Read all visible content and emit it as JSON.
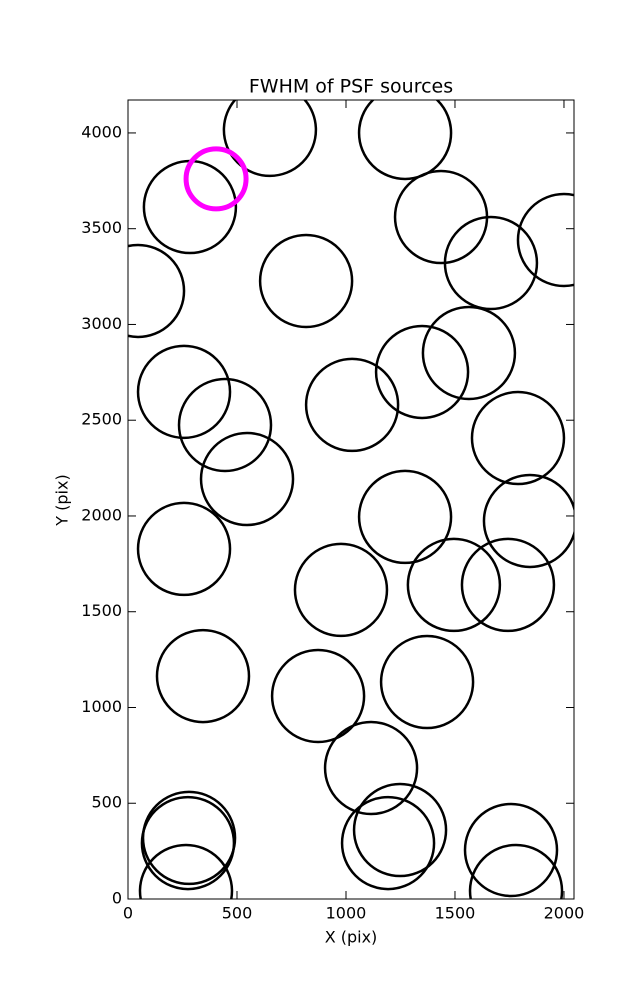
{
  "chart_data": {
    "type": "scatter",
    "title": "FWHM of PSF sources",
    "x_label": "X (pix)",
    "y_label": "Y (pix)",
    "xlim": [
      0,
      2046
    ],
    "ylim": [
      0,
      4172
    ],
    "xticks": [
      0,
      500,
      1000,
      1500,
      2000
    ],
    "yticks": [
      0,
      500,
      1000,
      1500,
      2000,
      2500,
      3000,
      3500,
      4000
    ],
    "series": [
      {
        "color": "#000000",
        "x": [
          651,
          1271,
          284,
          1436,
          2000,
          1665,
          46,
          817,
          1564,
          1349,
          257,
          1028,
          445,
          1789,
          546,
          1271,
          1844,
          257,
          1495,
          1743,
          977,
          344,
          872,
          1372,
          1115,
          280,
          1248,
          275,
          1193,
          1757,
          266,
          1780
        ],
        "values": [
          4016,
          4000,
          3613,
          3561,
          3441,
          3321,
          3175,
          3227,
          2851,
          2752,
          2648,
          2580,
          2475,
          2407,
          2193,
          1995,
          1974,
          1828,
          1640,
          1640,
          1614,
          1164,
          1060,
          1133,
          684,
          319,
          360,
          292,
          292,
          256,
          42,
          42
        ]
      },
      {
        "color": "#ff00ff",
        "x": [
          404
        ],
        "values": [
          3760
        ]
      }
    ]
  }
}
